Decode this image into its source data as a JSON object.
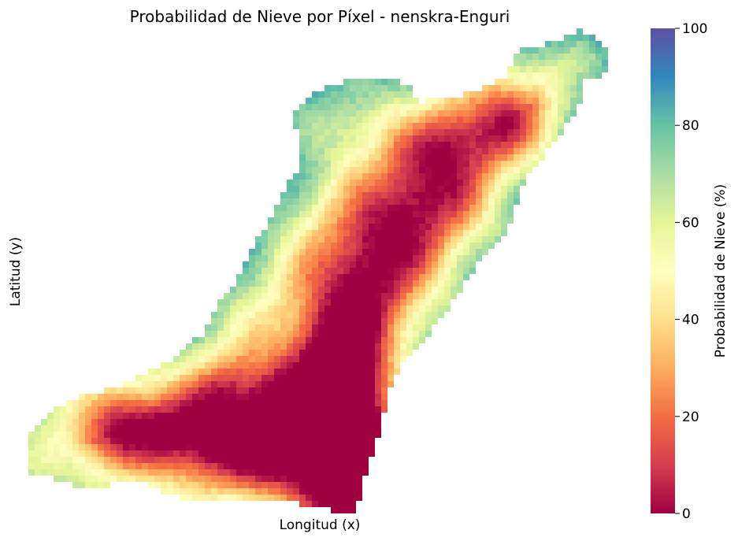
{
  "chart_data": {
    "type": "heatmap",
    "title": "Probabilidad de Nieve por Píxel - nenskra-Enguri",
    "xlabel": "Longitud (x)",
    "ylabel": "Latitud (y)",
    "colorbar": {
      "label": "Probabilidad de Nieve (%)",
      "range": [
        0,
        100
      ],
      "ticks": [
        0,
        20,
        40,
        60,
        80,
        100
      ],
      "colormap": "Spectral"
    },
    "grid": false,
    "colormap_colors": [
      "#9e0142",
      "#d53e4f",
      "#f46d43",
      "#fdae61",
      "#fee08b",
      "#ffffbf",
      "#e6f598",
      "#abdda4",
      "#66c2a5",
      "#3288bd",
      "#5e4fa2"
    ]
  }
}
